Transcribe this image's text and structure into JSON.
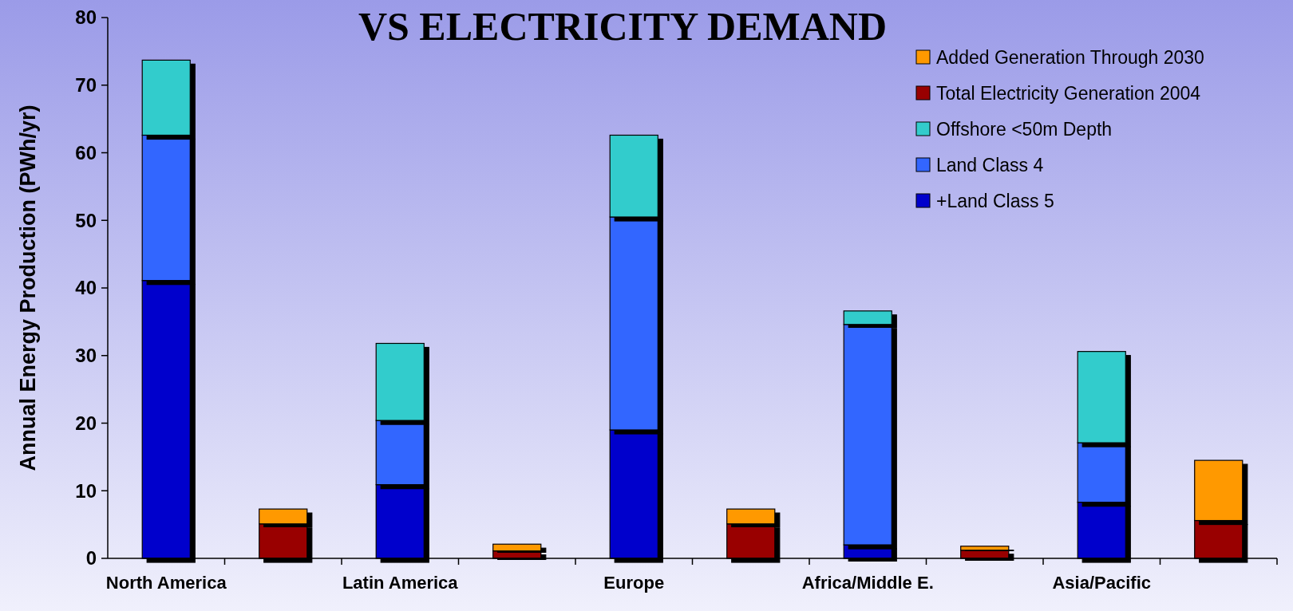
{
  "chart_data": {
    "type": "bar",
    "title": "VS ELECTRICITY DEMAND",
    "ylabel": "Annual Energy Production (PWh/yr)",
    "categories": [
      "North America",
      null,
      "Latin America",
      null,
      "Europe",
      null,
      "Africa/Middle E.",
      null,
      "Asia/Pacific",
      null
    ],
    "stacked": true,
    "legend": "top right",
    "ylim": [
      0,
      80
    ],
    "yticks": [
      0,
      10,
      20,
      30,
      40,
      50,
      60,
      70,
      80
    ],
    "series": [
      {
        "name": "+Land Class 5",
        "color": "#0000cc",
        "values": [
          41.1,
          null,
          10.9,
          null,
          19.0,
          null,
          2.0,
          null,
          8.3,
          null
        ]
      },
      {
        "name": "Land Class 4",
        "color": "#3366ff",
        "values": [
          21.5,
          null,
          9.5,
          null,
          31.5,
          null,
          32.6,
          null,
          8.8,
          null
        ]
      },
      {
        "name": "Offshore <50m Depth",
        "color": "#33cccc",
        "values": [
          11.1,
          null,
          11.4,
          null,
          12.1,
          null,
          2.0,
          null,
          13.5,
          null
        ]
      },
      {
        "name": "Total Electricity Generation 2004",
        "color": "#990000",
        "values": [
          null,
          5.1,
          null,
          1.1,
          null,
          5.1,
          null,
          1.2,
          null,
          5.6
        ]
      },
      {
        "name": "Added Generation Through 2030",
        "color": "#ff9900",
        "values": [
          null,
          2.2,
          null,
          1.0,
          null,
          2.2,
          null,
          0.6,
          null,
          8.9
        ]
      }
    ]
  }
}
